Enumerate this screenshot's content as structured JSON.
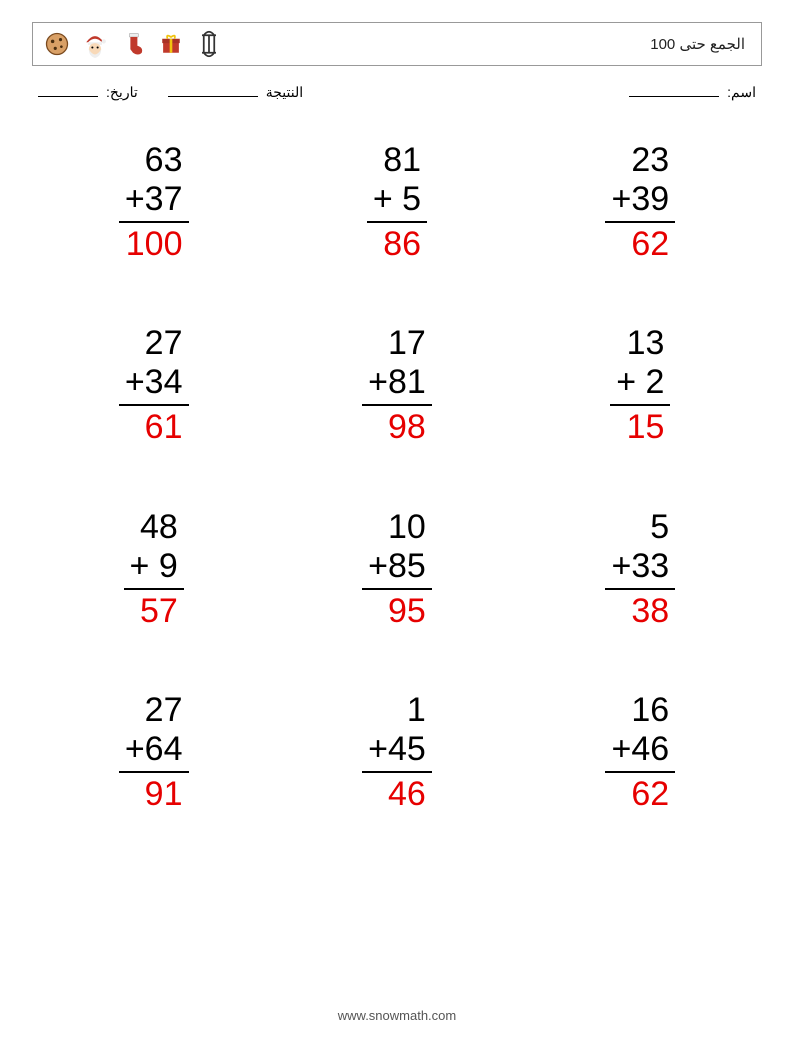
{
  "header": {
    "title": "الجمع حتى 100",
    "icons": [
      "cookie",
      "santa",
      "stocking",
      "gift",
      "lantern"
    ]
  },
  "meta": {
    "name_label": "اسم:",
    "score_label": "النتيجة",
    "date_label": "تاريخ:"
  },
  "layout": {
    "rows": 4,
    "cols": 3,
    "font_size": 34,
    "answer_color": "#e60000",
    "text_color": "#000000",
    "border_color": "#999999",
    "background_color": "#ffffff"
  },
  "problems": [
    {
      "a": 63,
      "b": 37,
      "sum": 100
    },
    {
      "a": 81,
      "b": 5,
      "sum": 86
    },
    {
      "a": 23,
      "b": 39,
      "sum": 62
    },
    {
      "a": 27,
      "b": 34,
      "sum": 61
    },
    {
      "a": 17,
      "b": 81,
      "sum": 98
    },
    {
      "a": 13,
      "b": 2,
      "sum": 15
    },
    {
      "a": 48,
      "b": 9,
      "sum": 57
    },
    {
      "a": 10,
      "b": 85,
      "sum": 95
    },
    {
      "a": 5,
      "b": 33,
      "sum": 38
    },
    {
      "a": 27,
      "b": 64,
      "sum": 91
    },
    {
      "a": 1,
      "b": 45,
      "sum": 46
    },
    {
      "a": 16,
      "b": 46,
      "sum": 62
    }
  ],
  "footer": {
    "text": "www.snowmath.com"
  }
}
